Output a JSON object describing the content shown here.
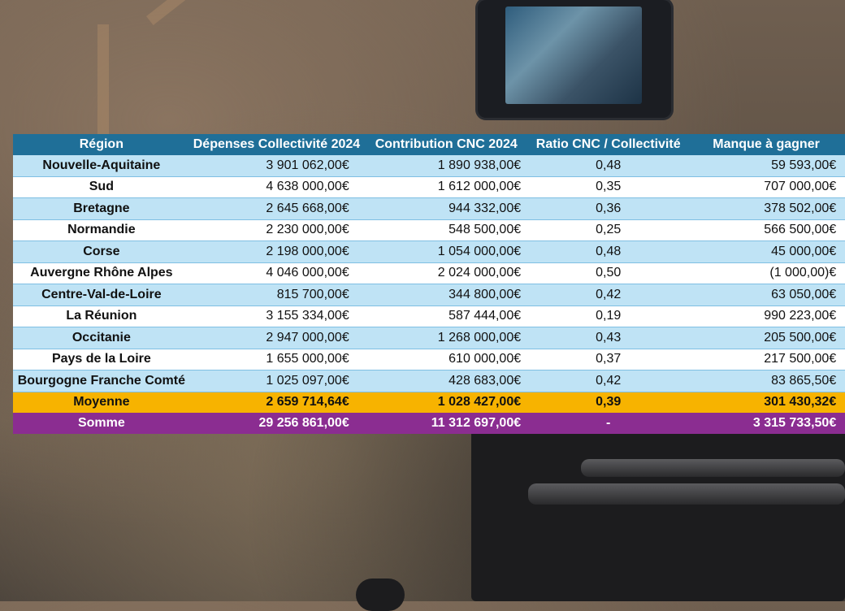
{
  "table": {
    "headers": [
      "Région",
      "Dépenses Collectivité 2024",
      "Contribution CNC 2024",
      "Ratio CNC / Collectivité",
      "Manque à gagner"
    ],
    "currency": "€",
    "rows": [
      {
        "region": "Nouvelle-Aquitaine",
        "depenses": "3 901 062,00",
        "cnc": "1 890 938,00",
        "ratio": "0,48",
        "manque": "59 593,00"
      },
      {
        "region": "Sud",
        "depenses": "4 638 000,00",
        "cnc": "1 612 000,00",
        "ratio": "0,35",
        "manque": "707 000,00"
      },
      {
        "region": "Bretagne",
        "depenses": "2 645 668,00",
        "cnc": "944 332,00",
        "ratio": "0,36",
        "manque": "378 502,00"
      },
      {
        "region": "Normandie",
        "depenses": "2 230 000,00",
        "cnc": "548 500,00",
        "ratio": "0,25",
        "manque": "566 500,00"
      },
      {
        "region": "Corse",
        "depenses": "2 198 000,00",
        "cnc": "1 054 000,00",
        "ratio": "0,48",
        "manque": "45 000,00"
      },
      {
        "region": "Auvergne Rhône Alpes",
        "depenses": "4 046 000,00",
        "cnc": "2 024 000,00",
        "ratio": "0,50",
        "manque": "(1 000,00)"
      },
      {
        "region": "Centre-Val-de-Loire",
        "depenses": "815 700,00",
        "cnc": "344 800,00",
        "ratio": "0,42",
        "manque": "63 050,00"
      },
      {
        "region": "La Réunion",
        "depenses": "3 155 334,00",
        "cnc": "587 444,00",
        "ratio": "0,19",
        "manque": "990 223,00"
      },
      {
        "region": "Occitanie",
        "depenses": "2 947 000,00",
        "cnc": "1 268 000,00",
        "ratio": "0,43",
        "manque": "205 500,00"
      },
      {
        "region": "Pays de la Loire",
        "depenses": "1 655 000,00",
        "cnc": "610 000,00",
        "ratio": "0,37",
        "manque": "217 500,00"
      },
      {
        "region": "Bourgogne Franche Comté",
        "depenses": "1 025 097,00",
        "cnc": "428 683,00",
        "ratio": "0,42",
        "manque": "83 865,50"
      }
    ],
    "average": {
      "region": "Moyenne",
      "depenses": "2 659 714,64",
      "cnc": "1 028 427,00",
      "ratio": "0,39",
      "manque": "301 430,32"
    },
    "sum": {
      "region": "Somme",
      "depenses": "29 256 861,00",
      "cnc": "11 312 697,00",
      "ratio": "-",
      "manque": "3 315 733,50"
    }
  },
  "colors": {
    "header": "#1f6f98",
    "row_light": "#bfe3f5",
    "row_white": "#ffffff",
    "average_row": "#f7b300",
    "sum_row": "#8b2d91"
  }
}
